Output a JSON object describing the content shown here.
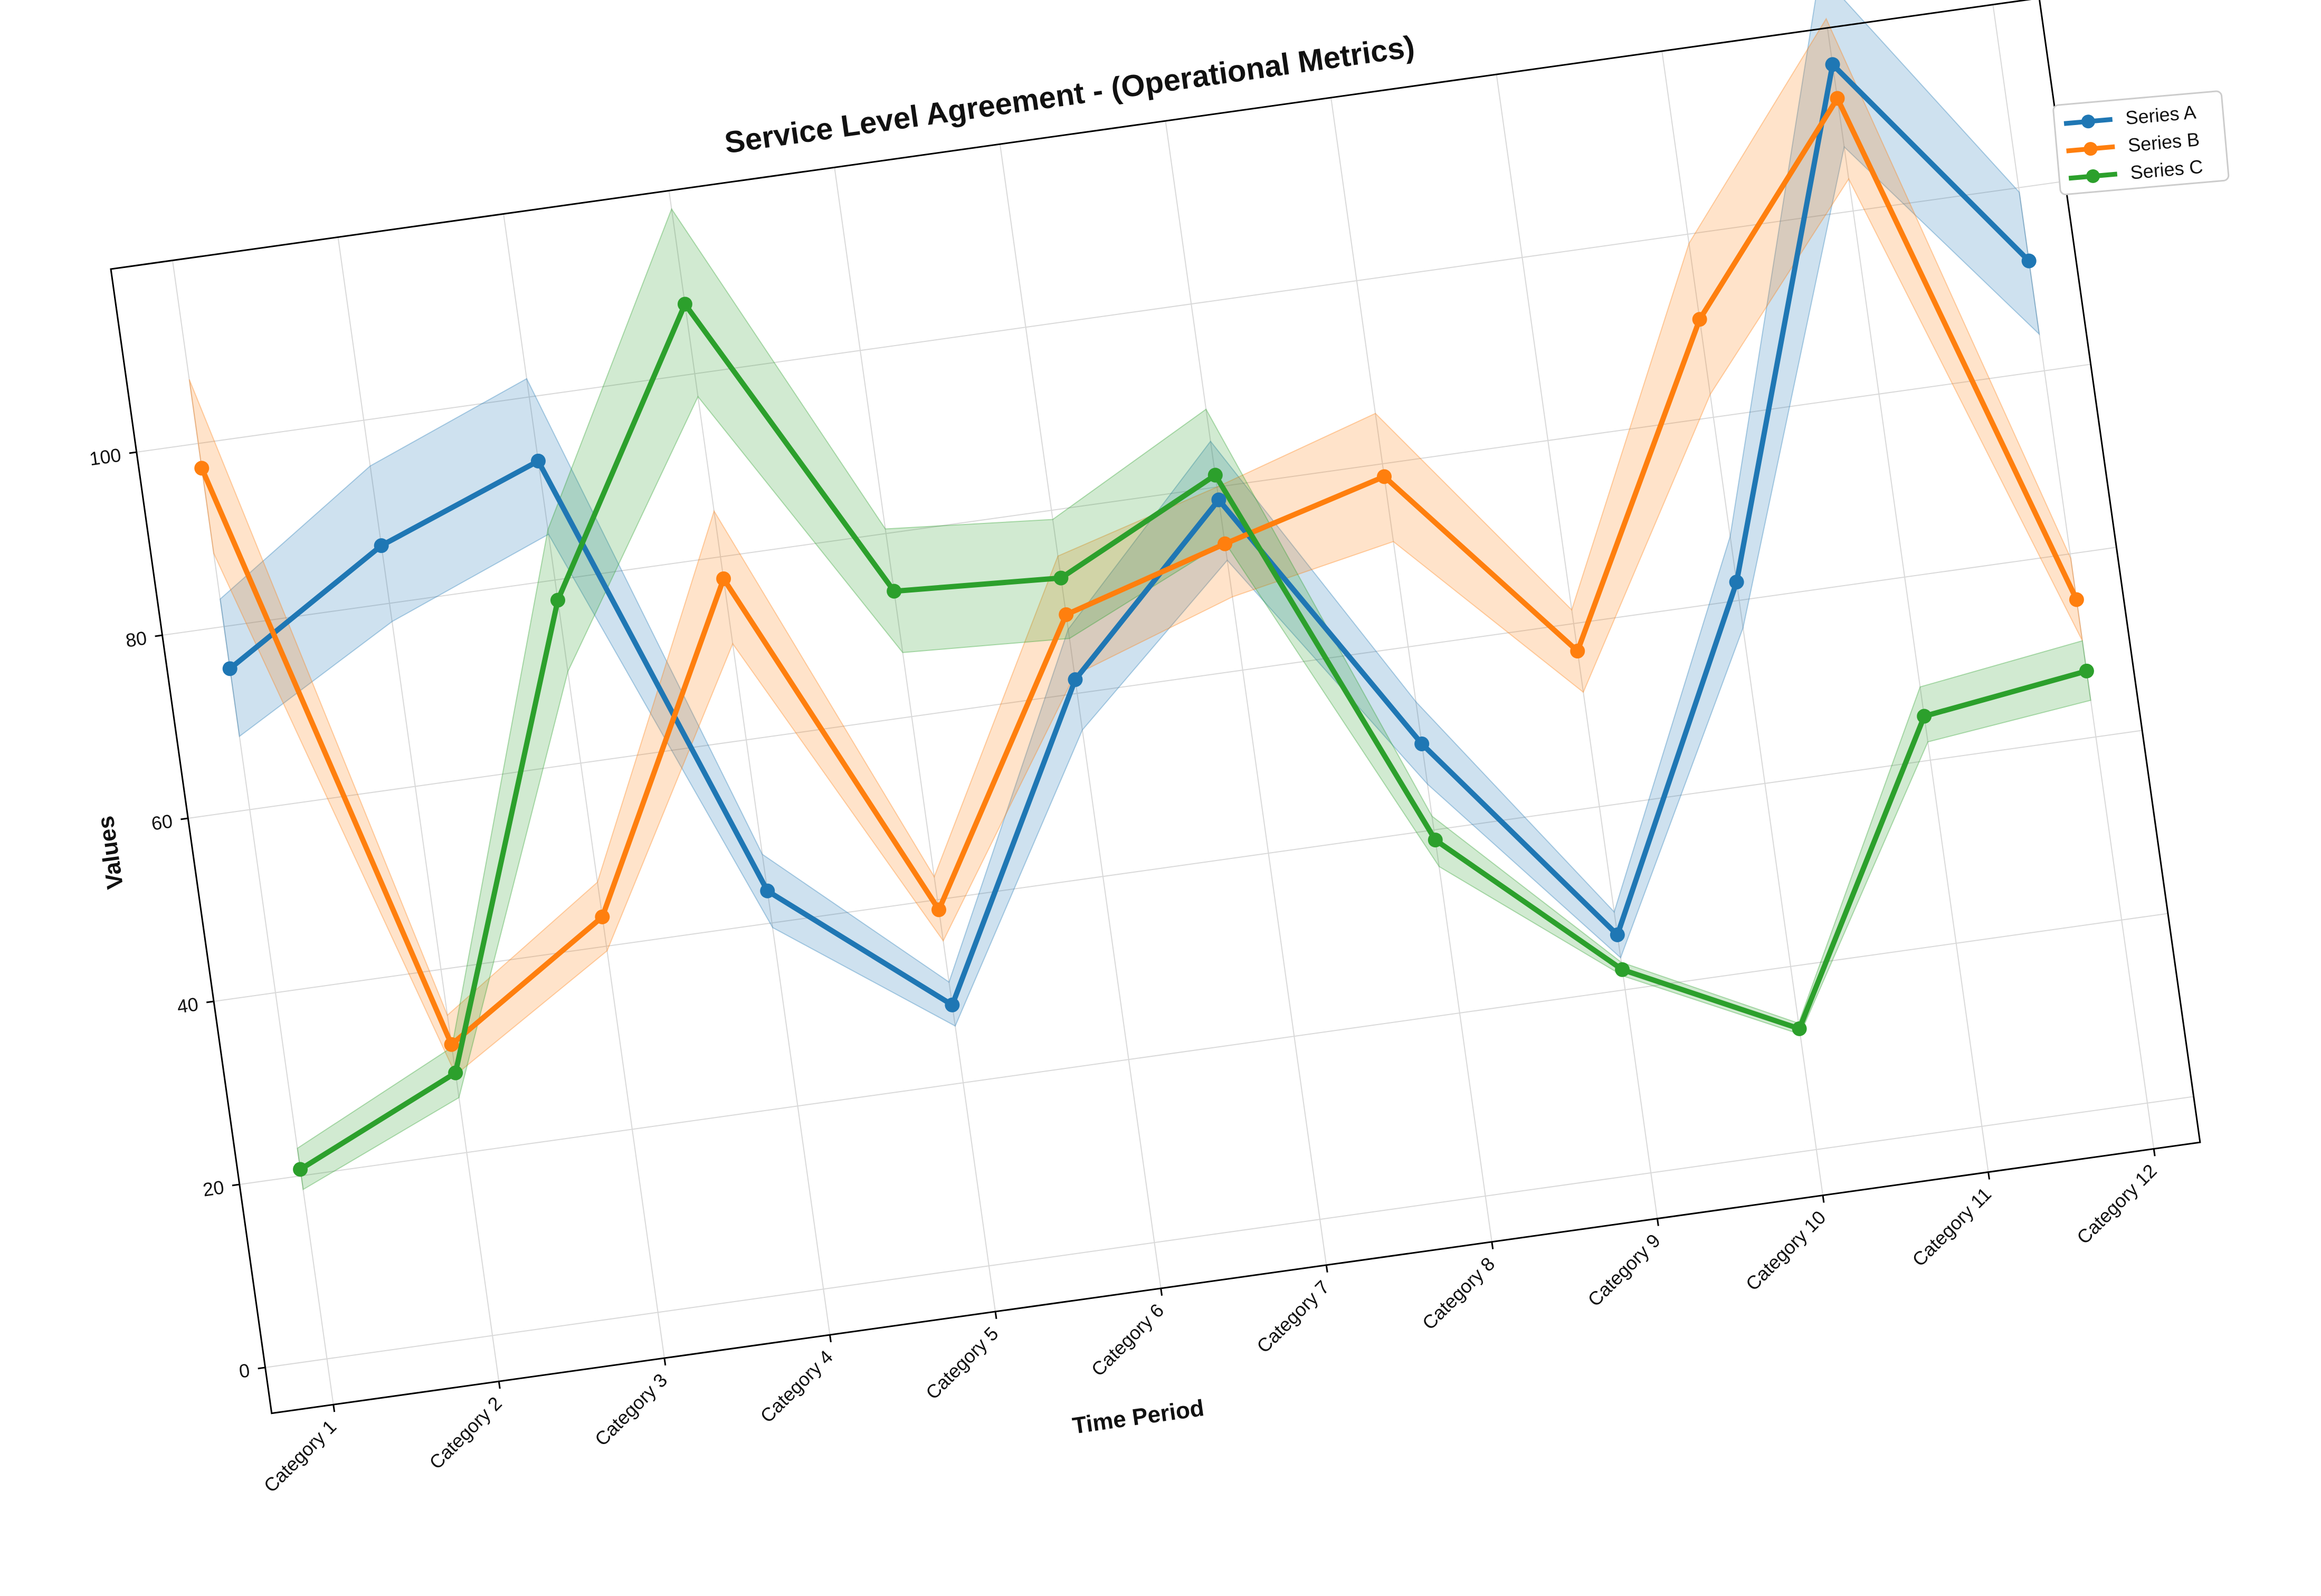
{
  "chart_data": {
    "type": "line",
    "title": "Service Level Agreement - (Operational Metrics)",
    "xlabel": "Time Period",
    "ylabel": "Values",
    "categories": [
      "Category 1",
      "Category 2",
      "Category 3",
      "Category 4",
      "Category 5",
      "Category 6",
      "Category 7",
      "Category 8",
      "Category 9",
      "Category 10",
      "Category 11",
      "Category 12"
    ],
    "ylim": [
      -5,
      120
    ],
    "yticks": [
      0,
      20,
      40,
      60,
      80,
      100
    ],
    "grid": true,
    "legend_position": "top-right",
    "series": [
      {
        "name": "Series A",
        "color": "#1f77b4",
        "values": [
          75.4,
          86.3,
          93.0,
          43.5,
          28.5,
          61.5,
          78.6,
          49.4,
          26.0,
          62.0,
          116.0,
          92.0
        ],
        "lower": [
          68,
          78,
          85,
          39.5,
          26.2,
          56,
          72,
          45,
          23.5,
          57,
          107,
          84
        ],
        "upper": [
          83,
          95,
          102,
          47.5,
          31,
          67,
          85,
          54,
          28.5,
          67,
          126,
          99.5
        ]
      },
      {
        "name": "Series B",
        "color": "#ff7f0e",
        "values": [
          97.3,
          31.8,
          43.2,
          77.6,
          38.9,
          68.6,
          73.8,
          78.6,
          57.0,
          90.7,
          112.3,
          55.0
        ],
        "lower": [
          88,
          28.5,
          39.5,
          70.5,
          35.5,
          62,
          68,
          71.5,
          52.5,
          82.5,
          103.5,
          50.5
        ],
        "upper": [
          107,
          35,
          47,
          85,
          42.5,
          75,
          80,
          85.5,
          61.5,
          99,
          121,
          59.5
        ]
      },
      {
        "name": "Series C",
        "color": "#2ca02c",
        "values": [
          20.7,
          28.7,
          77.8,
          107.6,
          73.7,
          72.6,
          81.3,
          38.9,
          22.2,
          13.2,
          44.8,
          47.2
        ],
        "lower": [
          18.5,
          26,
          70,
          97.5,
          67,
          66,
          74,
          36,
          21.5,
          12.6,
          42,
          44
        ],
        "upper": [
          23,
          31.5,
          85.5,
          118,
          80.5,
          79,
          88.5,
          41.5,
          23,
          13.8,
          48,
          50.5
        ]
      }
    ]
  }
}
